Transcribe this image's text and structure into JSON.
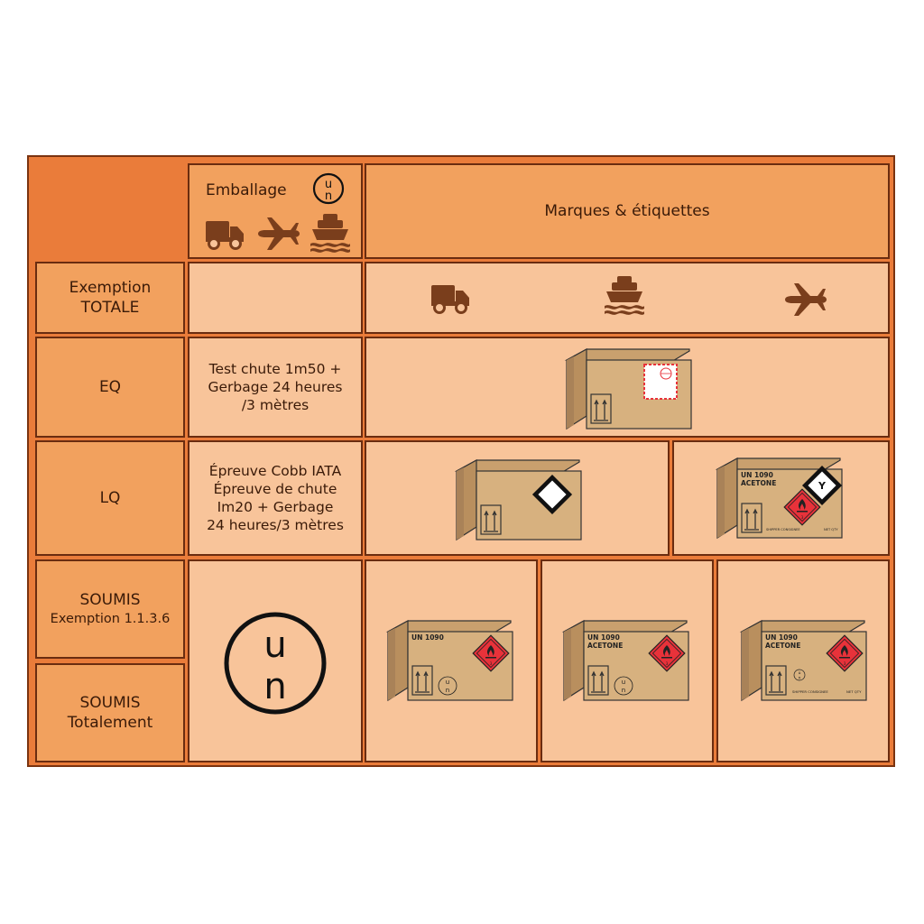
{
  "header": {
    "emballage": "Emballage",
    "marques": "Marques & étiquettes",
    "un_top": "u",
    "un_bottom": "n"
  },
  "rows": {
    "exemption": {
      "line1": "Exemption",
      "line2": "TOTALE"
    },
    "eq": {
      "label": "EQ",
      "desc": [
        "Test chute 1m50 +",
        "Gerbage 24 heures",
        "/3 mètres"
      ]
    },
    "lq": {
      "label": "LQ",
      "desc": [
        "Épreuve Cobb IATA",
        "Épreuve de chute",
        "Im20 + Gerbage",
        "24 heures/3 mètres"
      ]
    },
    "soumis_exemption": {
      "line1": "SOUMIS",
      "line2": "Exemption 1.1.3.6"
    },
    "soumis_total": {
      "line1": "SOUMIS",
      "line2": "Totalement"
    }
  },
  "packages": {
    "lq2": {
      "line1": "UN 1090",
      "line2": "ACETONE",
      "diamond_letter": "Y",
      "small1": "SHIPPER  CONSIGNEE",
      "small2": "NET QTY"
    },
    "s1": {
      "line1": "UN 1090"
    },
    "s2": {
      "line1": "UN 1090",
      "line2": "ACETONE"
    },
    "s3": {
      "line1": "UN 1090",
      "line2": "ACETONE",
      "small1": "SHIPPER  CONSIGNEE",
      "small2": "NET QTY"
    }
  },
  "icons": [
    "truck-icon",
    "airplane-icon",
    "ship-icon",
    "un-mark-icon",
    "flame-class3-label-icon",
    "limited-quantity-mark-icon",
    "excepted-quantity-mark-icon",
    "this-way-up-arrows-icon"
  ],
  "colors": {
    "frame": "#ea7c3a",
    "header": "#f2a15e",
    "cell": "#f8c49a",
    "icon": "#7a3e1c",
    "box": "#d7b17f",
    "hazard_red": "#e8323a"
  }
}
